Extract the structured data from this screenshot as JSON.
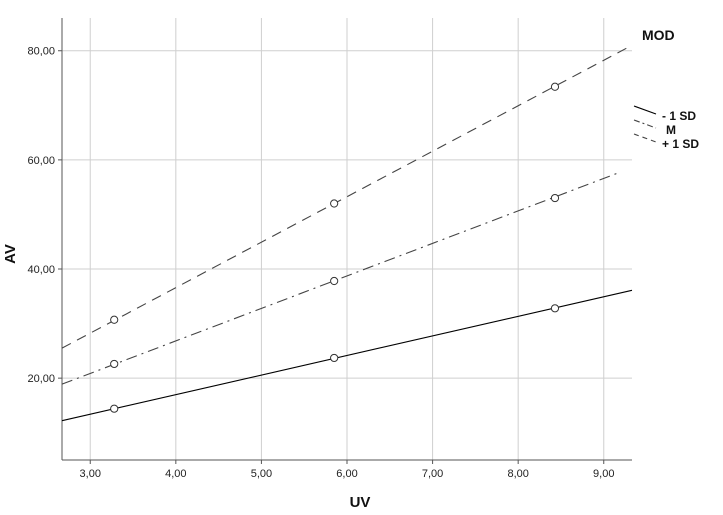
{
  "chart_data": {
    "type": "line",
    "xlabel": "UV",
    "ylabel": "AV",
    "xlim": [
      2.67,
      9.33
    ],
    "ylim": [
      5.0,
      86.0
    ],
    "x_ticks": [
      3.0,
      4.0,
      5.0,
      6.0,
      7.0,
      8.0,
      9.0
    ],
    "x_tick_labels": [
      "3,00",
      "4,00",
      "5,00",
      "6,00",
      "7,00",
      "8,00",
      "9,00"
    ],
    "y_ticks": [
      20.0,
      40.0,
      60.0,
      80.0
    ],
    "y_tick_labels": [
      "20,00",
      "40,00",
      "60,00",
      "80,00"
    ],
    "grid": true,
    "legend": {
      "title": "MOD",
      "position": "right"
    },
    "series": [
      {
        "name": "- 1 SD",
        "dash": "solid",
        "color": "#000000",
        "line": {
          "x": [
            2.67,
            9.33
          ],
          "y": [
            12.2,
            36.1
          ]
        },
        "points": {
          "x": [
            3.28,
            5.85,
            8.43
          ],
          "y": [
            14.4,
            23.7,
            32.8
          ]
        }
      },
      {
        "name": "M",
        "dash": "dashdot",
        "color": "#444444",
        "line": {
          "x": [
            2.67,
            9.15
          ],
          "y": [
            18.9,
            57.5
          ]
        },
        "points": {
          "x": [
            3.28,
            5.85,
            8.43
          ],
          "y": [
            22.6,
            37.8,
            53.0
          ]
        }
      },
      {
        "name": "+ 1 SD",
        "dash": "dashed",
        "color": "#444444",
        "line": {
          "x": [
            2.67,
            9.33
          ],
          "y": [
            25.5,
            81.0
          ]
        },
        "points": {
          "x": [
            3.28,
            5.85,
            8.43
          ],
          "y": [
            30.7,
            52.0,
            73.4
          ]
        }
      }
    ]
  }
}
